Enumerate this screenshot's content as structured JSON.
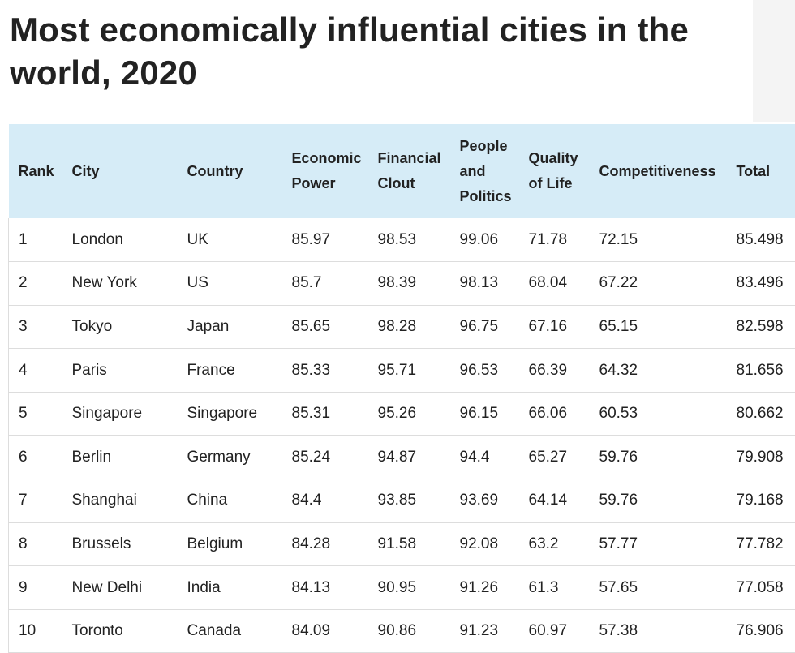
{
  "header": {
    "title": "Most economically influential cities in the world, 2020"
  },
  "table": {
    "columns": [
      "Rank",
      "City",
      "Country",
      "Economic Power",
      "Financial Clout",
      "People and Politics",
      "Quality of Life",
      "Competitiveness",
      "Total"
    ],
    "rows": [
      [
        "1",
        "London",
        "UK",
        "85.97",
        "98.53",
        "99.06",
        "71.78",
        "72.15",
        "85.498"
      ],
      [
        "2",
        "New York",
        "US",
        "85.7",
        "98.39",
        "98.13",
        "68.04",
        "67.22",
        "83.496"
      ],
      [
        "3",
        "Tokyo",
        "Japan",
        "85.65",
        "98.28",
        "96.75",
        "67.16",
        "65.15",
        "82.598"
      ],
      [
        "4",
        "Paris",
        "France",
        "85.33",
        "95.71",
        "96.53",
        "66.39",
        "64.32",
        "81.656"
      ],
      [
        "5",
        "Singapore",
        "Singapore",
        "85.31",
        "95.26",
        "96.15",
        "66.06",
        "60.53",
        "80.662"
      ],
      [
        "6",
        "Berlin",
        "Germany",
        "85.24",
        "94.87",
        "94.4",
        "65.27",
        "59.76",
        "79.908"
      ],
      [
        "7",
        "Shanghai",
        "China",
        "84.4",
        "93.85",
        "93.69",
        "64.14",
        "59.76",
        "79.168"
      ],
      [
        "8",
        "Brussels",
        "Belgium",
        "84.28",
        "91.58",
        "92.08",
        "63.2",
        "57.77",
        "77.782"
      ],
      [
        "9",
        "New Delhi",
        "India",
        "84.13",
        "90.95",
        "91.26",
        "61.3",
        "57.65",
        "77.058"
      ],
      [
        "10",
        "Toronto",
        "Canada",
        "84.09",
        "90.86",
        "91.23",
        "60.97",
        "57.38",
        "76.906"
      ]
    ]
  }
}
